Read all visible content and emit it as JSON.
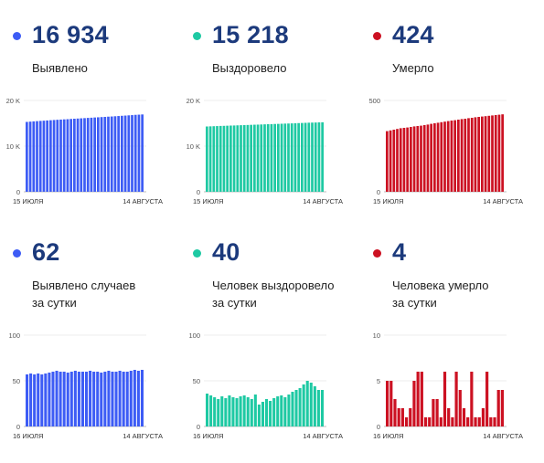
{
  "panels": [
    {
      "id": "confirmed-total",
      "value": "16 934",
      "label": [
        "Выявлено"
      ],
      "color": "#3d5cf5",
      "chart_data": {
        "type": "bar",
        "x_start_label": "15 ИЮЛЯ",
        "x_end_label": "14 АВГУСТА",
        "yticks": [
          {
            "value": 0,
            "label": "0"
          },
          {
            "value": 10000,
            "label": "10 K"
          },
          {
            "value": 20000,
            "label": "20 K"
          }
        ],
        "ylim": [
          0,
          20000
        ],
        "values": [
          15300,
          15360,
          15420,
          15470,
          15520,
          15570,
          15620,
          15670,
          15720,
          15770,
          15810,
          15860,
          15900,
          15950,
          16000,
          16040,
          16090,
          16130,
          16180,
          16220,
          16270,
          16310,
          16360,
          16400,
          16450,
          16490,
          16540,
          16590,
          16640,
          16690,
          16740,
          16790,
          16850,
          16890,
          16934
        ]
      }
    },
    {
      "id": "recovered-total",
      "value": "15 218",
      "label": [
        "Выздоровело"
      ],
      "color": "#1ec9a3",
      "chart_data": {
        "type": "bar",
        "x_start_label": "15 ИЮЛЯ",
        "x_end_label": "14 АВГУСТА",
        "yticks": [
          {
            "value": 0,
            "label": "0"
          },
          {
            "value": 10000,
            "label": "10 K"
          },
          {
            "value": 20000,
            "label": "20 K"
          }
        ],
        "ylim": [
          0,
          20000
        ],
        "values": [
          14300,
          14330,
          14360,
          14390,
          14420,
          14440,
          14470,
          14500,
          14520,
          14550,
          14580,
          14600,
          14630,
          14660,
          14690,
          14710,
          14740,
          14770,
          14800,
          14820,
          14850,
          14870,
          14900,
          14930,
          14950,
          14980,
          15010,
          15040,
          15070,
          15100,
          15130,
          15150,
          15170,
          15200,
          15218
        ]
      }
    },
    {
      "id": "deaths-total",
      "value": "424",
      "label": [
        "Умерло"
      ],
      "color": "#cc1122",
      "chart_data": {
        "type": "bar",
        "x_start_label": "15 ИЮЛЯ",
        "x_end_label": "14 АВГУСТА",
        "yticks": [
          {
            "value": 0,
            "label": "0"
          },
          {
            "value": 500,
            "label": "500"
          }
        ],
        "ylim": [
          0,
          500
        ],
        "values": [
          332,
          336,
          340,
          344,
          348,
          350,
          352,
          355,
          358,
          360,
          362,
          365,
          368,
          372,
          375,
          378,
          381,
          384,
          387,
          390,
          392,
          395,
          398,
          400,
          403,
          405,
          408,
          410,
          412,
          414,
          416,
          418,
          420,
          422,
          424
        ]
      }
    },
    {
      "id": "confirmed-daily",
      "value": "62",
      "label": [
        "Выявлено случаев",
        "за сутки"
      ],
      "color": "#3d5cf5",
      "chart_data": {
        "type": "bar",
        "x_start_label": "16 ИЮЛЯ",
        "x_end_label": "14 АВГУСТА",
        "yticks": [
          {
            "value": 0,
            "label": "0"
          },
          {
            "value": 50,
            "label": "50"
          },
          {
            "value": 100,
            "label": "100"
          }
        ],
        "ylim": [
          0,
          100
        ],
        "values": [
          57,
          58,
          57,
          58,
          57,
          58,
          59,
          60,
          61,
          60,
          60,
          59,
          60,
          61,
          60,
          60,
          60,
          61,
          60,
          60,
          59,
          60,
          61,
          60,
          60,
          61,
          60,
          60,
          61,
          62,
          61,
          62
        ]
      }
    },
    {
      "id": "recovered-daily",
      "value": "40",
      "label": [
        "Человек выздоровело",
        "за сутки"
      ],
      "color": "#1ec9a3",
      "chart_data": {
        "type": "bar",
        "x_start_label": "16 ИЮЛЯ",
        "x_end_label": "14 АВГУСТА",
        "yticks": [
          {
            "value": 0,
            "label": "0"
          },
          {
            "value": 50,
            "label": "50"
          },
          {
            "value": 100,
            "label": "100"
          }
        ],
        "ylim": [
          0,
          100
        ],
        "values": [
          36,
          34,
          32,
          30,
          33,
          31,
          34,
          32,
          31,
          33,
          34,
          32,
          30,
          35,
          24,
          27,
          30,
          28,
          31,
          33,
          34,
          32,
          35,
          38,
          40,
          42,
          46,
          50,
          48,
          44,
          40,
          40
        ]
      }
    },
    {
      "id": "deaths-daily",
      "value": "4",
      "label": [
        "Человека умерло",
        "за сутки"
      ],
      "color": "#cc1122",
      "chart_data": {
        "type": "bar",
        "x_start_label": "16 ИЮЛЯ",
        "x_end_label": "14 АВГУСТА",
        "yticks": [
          {
            "value": 0,
            "label": "0"
          },
          {
            "value": 5,
            "label": "5"
          },
          {
            "value": 10,
            "label": "10"
          }
        ],
        "ylim": [
          0,
          10
        ],
        "values": [
          5,
          5,
          3,
          2,
          2,
          1,
          2,
          5,
          6,
          6,
          1,
          1,
          3,
          3,
          1,
          6,
          2,
          1,
          6,
          4,
          2,
          1,
          6,
          1,
          1,
          2,
          6,
          1,
          1,
          4,
          4
        ]
      }
    }
  ]
}
